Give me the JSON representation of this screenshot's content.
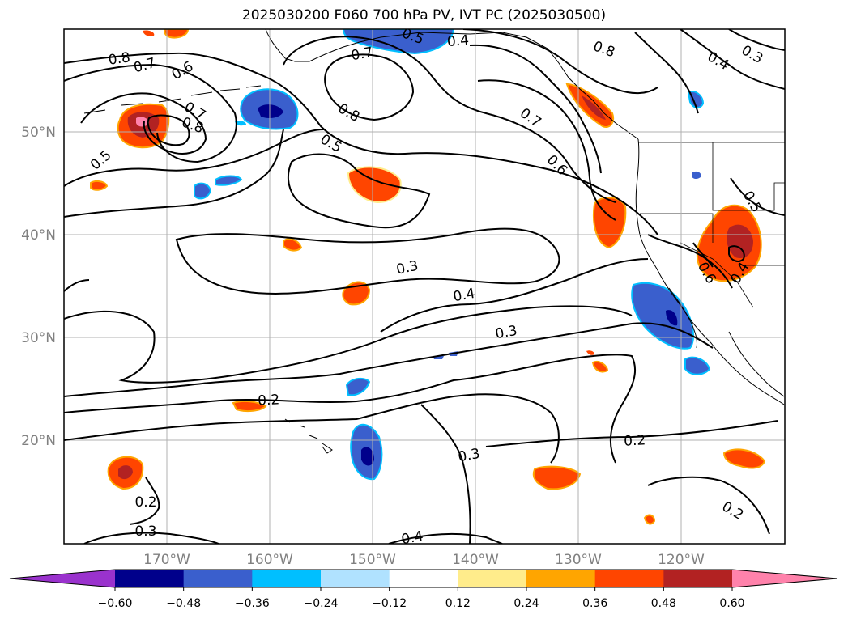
{
  "title": "2025030200 F060 700 hPa PV, IVT PC (2025030500)",
  "map": {
    "lat_labels": [
      "50°N",
      "40°N",
      "30°N",
      "20°N"
    ],
    "lon_labels": [
      "170°W",
      "160°W",
      "150°W",
      "140°W",
      "130°W",
      "120°W"
    ]
  },
  "contour_labels": [
    "0.8",
    "0.7",
    "0.6",
    "0.7",
    "0.8",
    "0.5",
    "0.5",
    "0.7",
    "0.8",
    "0.5",
    "0.4",
    "0.8",
    "0.4",
    "0.3",
    "0.7",
    "0.6",
    "0.3",
    "0.4",
    "0.3",
    "0.2",
    "0.3",
    "0.2",
    "0.2",
    "0.2",
    "0.3",
    "0.4",
    "0.5",
    "0.6",
    "0.4"
  ],
  "colorbar": {
    "colors": [
      "#9a32cd",
      "#00008b",
      "#3a5fcd",
      "#00bfff",
      "#b0e2ff",
      "#ffffff",
      "#ffec8b",
      "#ffa500",
      "#ff4500",
      "#b22222",
      "#ff82ab"
    ],
    "ticks": [
      "−0.60",
      "−0.48",
      "−0.36",
      "−0.24",
      "−0.12",
      "0.12",
      "0.24",
      "0.36",
      "0.48",
      "0.60"
    ],
    "min": -0.72,
    "max": 0.72
  }
}
